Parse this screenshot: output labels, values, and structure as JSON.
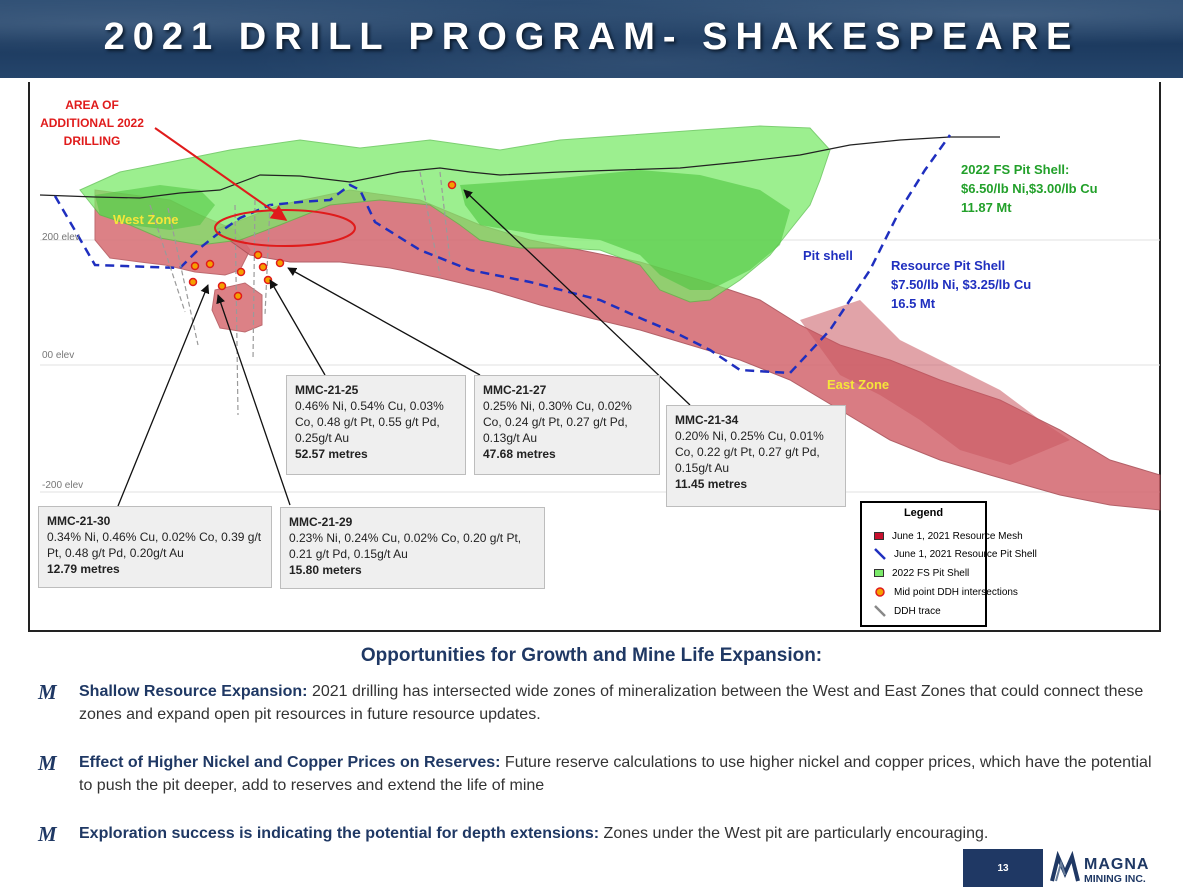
{
  "title": "2021 DRILL PROGRAM- SHAKESPEARE",
  "annotation": {
    "area_label": "AREA OF ADDITIONAL 2022 DRILLING"
  },
  "zones": {
    "west": "West Zone",
    "east": "East Zone",
    "pit_shell": "Pit shell"
  },
  "elevations": [
    "200 elev",
    "00 elev",
    "-200 elev"
  ],
  "fs_pit": {
    "line1": "2022 FS  Pit Shell:",
    "line2": "$6.50/lb Ni,$3.00/lb Cu",
    "line3": "11.87 Mt",
    "color": "#22a02a"
  },
  "resource_pit": {
    "line1": "Resource Pit Shell",
    "line2": "$7.50/lb Ni, $3.25/lb Cu",
    "line3": "16.5 Mt",
    "color": "#1f2fbf"
  },
  "callouts": [
    {
      "id": "MMC-21-30",
      "body": "0.34% Ni, 0.46% Cu, 0.02% Co, 0.39 g/t Pt, 0.48 g/t Pd, 0.20g/t Au",
      "length": "12.79 metres"
    },
    {
      "id": "MMC-21-29",
      "body": "0.23% Ni, 0.24% Cu, 0.02% Co, 0.20 g/t Pt, 0.21 g/t Pd, 0.15g/t Au",
      "length": "15.80 meters"
    },
    {
      "id": "MMC-21-25",
      "body": "0.46% Ni, 0.54% Cu, 0.03% Co, 0.48 g/t Pt, 0.55 g/t Pd, 0.25g/t Au",
      "length": "52.57 metres"
    },
    {
      "id": "MMC-21-27",
      "body": "0.25% Ni, 0.30% Cu, 0.02% Co, 0.24 g/t Pt, 0.27 g/t Pd, 0.13g/t Au",
      "length": "47.68 metres"
    },
    {
      "id": "MMC-21-34",
      "body": "0.20% Ni, 0.25% Cu, 0.01% Co, 0.22 g/t Pt, 0.27 g/t Pd, 0.15g/t Au",
      "length": "11.45 metres"
    }
  ],
  "legend": {
    "title": "Legend",
    "items": [
      "June 1, 2021 Resource Mesh",
      "June 1, 2021 Resource Pit Shell",
      "2022 FS Pit Shell",
      "Mid point DDH intersections",
      "DDH trace"
    ]
  },
  "colors": {
    "resource_mesh": "#d9747a",
    "fs_pit_shell": "#7bea6a",
    "pit_line": "#1f2fbf",
    "accent": "#1f3864",
    "highlight": "#e01b1b"
  },
  "subtitle": "Opportunities for Growth and Mine Life Expansion:",
  "bullets": [
    {
      "bold": "Shallow Resource Expansion:",
      "text": " 2021 drilling has intersected wide zones of mineralization between the West and East Zones that could connect these zones and expand open pit resources in future resource updates."
    },
    {
      "bold": "Effect of Higher Nickel and Copper Prices on Reserves:",
      "text": " Future reserve calculations to use higher nickel and copper prices, which have the potential to push the pit deeper, add to reserves and extend the life of mine"
    },
    {
      "bold": "Exploration success is indicating the potential for depth extensions:",
      "text": " Zones under the West pit are particularly encouraging."
    }
  ],
  "bullet_marker": "M",
  "page_number": "13",
  "logo": {
    "brand": "MAGNA",
    "sub": "MINING INC."
  }
}
